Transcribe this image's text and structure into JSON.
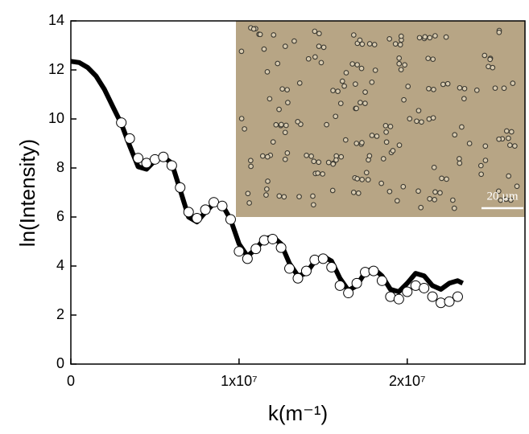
{
  "chart_data": {
    "type": "scatter",
    "x_label": "k(m⁻¹)",
    "y_label": "ln(Intensity)",
    "xlim": [
      0,
      27000000
    ],
    "ylim": [
      0,
      14
    ],
    "xticks": [
      0,
      {
        "value": 10000000,
        "label": "1x10⁷"
      },
      {
        "value": 20000000,
        "label": "2x10⁷"
      }
    ],
    "yticks": [
      0,
      2,
      4,
      6,
      8,
      10,
      12,
      14
    ],
    "inset": {
      "scale_bar_label": "20 µm"
    },
    "series": [
      {
        "type": "line",
        "color": "#000000",
        "x": [
          0,
          500000,
          1000000,
          1500000,
          2000000,
          2500000,
          3000000,
          3500000,
          4000000,
          4500000,
          5000000,
          5500000,
          6000000,
          6500000,
          7000000,
          7500000,
          8000000,
          8500000,
          9000000,
          9500000,
          10000000,
          10500000,
          11000000,
          11500000,
          12000000,
          12500000,
          13000000,
          13500000,
          14000000,
          14500000,
          15000000,
          15500000,
          16000000,
          16500000,
          17000000,
          17500000,
          18000000,
          18500000,
          19000000,
          19500000,
          20000000,
          20500000,
          21000000,
          21500000,
          22000000,
          22500000,
          23000000,
          23300000
        ],
        "values": [
          12.35,
          12.3,
          12.1,
          11.75,
          11.2,
          10.5,
          9.8,
          8.9,
          8.05,
          7.95,
          8.3,
          8.45,
          8.2,
          7.1,
          6.0,
          5.8,
          6.2,
          6.55,
          6.5,
          5.9,
          4.9,
          4.4,
          4.7,
          5.1,
          5.2,
          4.9,
          4.1,
          3.6,
          3.7,
          4.2,
          4.4,
          4.2,
          3.5,
          3.0,
          3.2,
          3.75,
          3.9,
          3.6,
          3.05,
          2.95,
          3.3,
          3.7,
          3.6,
          3.2,
          3.05,
          3.3,
          3.4,
          3.3
        ]
      },
      {
        "type": "scatter",
        "color": "#ffffff",
        "x": [
          3000000,
          3500000,
          4000000,
          4500000,
          5000000,
          5500000,
          6000000,
          6500000,
          7000000,
          7500000,
          8000000,
          8500000,
          9000000,
          9500000,
          10000000,
          10500000,
          11000000,
          11500000,
          12000000,
          12500000,
          13000000,
          13500000,
          14000000,
          14500000,
          15000000,
          15500000,
          16000000,
          16500000,
          17000000,
          17500000,
          18000000,
          18500000,
          19000000,
          19500000,
          20000000,
          20500000,
          21000000,
          21500000,
          22000000,
          22500000,
          23000000
        ],
        "values": [
          9.85,
          9.2,
          8.4,
          8.2,
          8.35,
          8.45,
          8.1,
          7.2,
          6.2,
          5.95,
          6.3,
          6.6,
          6.45,
          5.9,
          4.6,
          4.3,
          4.7,
          5.05,
          5.1,
          4.75,
          3.9,
          3.5,
          3.8,
          4.25,
          4.3,
          3.95,
          3.2,
          2.9,
          3.3,
          3.75,
          3.8,
          3.4,
          2.75,
          2.65,
          2.95,
          3.2,
          3.1,
          2.75,
          2.5,
          2.55,
          2.75
        ]
      }
    ]
  }
}
